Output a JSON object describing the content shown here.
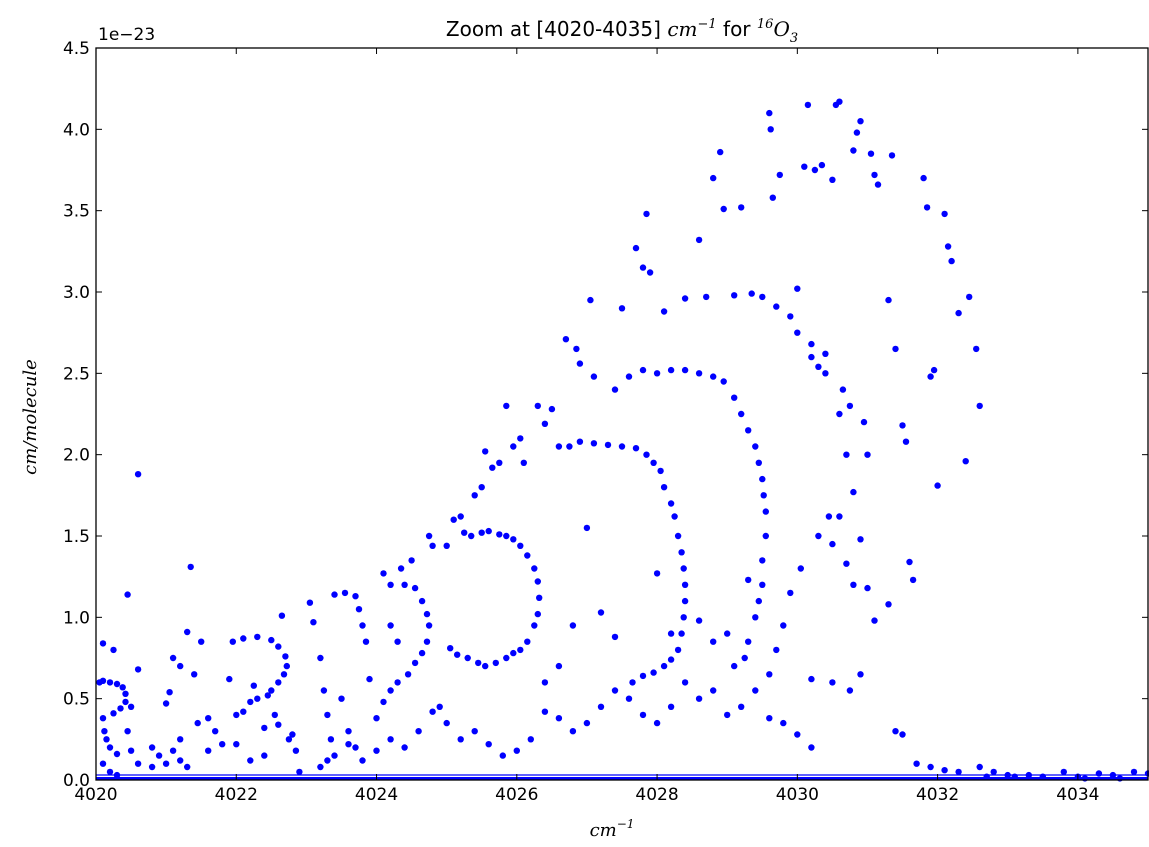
{
  "chart_data": {
    "type": "scatter",
    "title": {
      "prefix": "Zoom at [4020-4035] ",
      "unit_base": "cm",
      "unit_exp": "−1",
      "middle": "  for ",
      "isotope": "16",
      "species_base": "O",
      "species_sub": "3"
    },
    "xlabel": {
      "base": "cm",
      "exp": "−1"
    },
    "ylabel": "cm/molecule",
    "y_scale_label": "1e−23",
    "xlim": [
      4020,
      4035
    ],
    "ylim": [
      0,
      4.5
    ],
    "x_ticks": [
      "4020",
      "4022",
      "4024",
      "4026",
      "4028",
      "4030",
      "4032",
      "4034"
    ],
    "y_ticks": [
      "0.0",
      "0.5",
      "1.0",
      "1.5",
      "2.0",
      "2.5",
      "3.0",
      "3.5",
      "4.0",
      "4.5"
    ],
    "grid": false,
    "color": "#0000ff",
    "points": [
      [
        4020.05,
        0.6
      ],
      [
        4020.1,
        0.61
      ],
      [
        4020.2,
        0.6
      ],
      [
        4020.3,
        0.59
      ],
      [
        4020.38,
        0.57
      ],
      [
        4020.42,
        0.53
      ],
      [
        4020.42,
        0.48
      ],
      [
        4020.35,
        0.44
      ],
      [
        4020.25,
        0.41
      ],
      [
        4020.1,
        0.38
      ],
      [
        4020.12,
        0.3
      ],
      [
        4020.15,
        0.25
      ],
      [
        4020.2,
        0.2
      ],
      [
        4020.3,
        0.16
      ],
      [
        4020.1,
        0.1
      ],
      [
        4020.2,
        0.05
      ],
      [
        4020.3,
        0.03
      ],
      [
        4020.1,
        0.84
      ],
      [
        4020.25,
        0.8
      ],
      [
        4020.45,
        1.14
      ],
      [
        4020.6,
        1.88
      ],
      [
        4020.6,
        0.68
      ],
      [
        4020.5,
        0.45
      ],
      [
        4020.45,
        0.3
      ],
      [
        4020.5,
        0.18
      ],
      [
        4020.6,
        0.1
      ],
      [
        4020.8,
        0.2
      ],
      [
        4020.9,
        0.15
      ],
      [
        4021.0,
        0.47
      ],
      [
        4021.05,
        0.54
      ],
      [
        4021.1,
        0.75
      ],
      [
        4021.2,
        0.7
      ],
      [
        4021.3,
        0.91
      ],
      [
        4021.35,
        1.31
      ],
      [
        4021.5,
        0.85
      ],
      [
        4021.4,
        0.65
      ],
      [
        4021.45,
        0.35
      ],
      [
        4021.2,
        0.25
      ],
      [
        4021.1,
        0.18
      ],
      [
        4021.0,
        0.1
      ],
      [
        4021.3,
        0.08
      ],
      [
        4021.6,
        0.38
      ],
      [
        4021.7,
        0.3
      ],
      [
        4021.8,
        0.22
      ],
      [
        4021.9,
        0.62
      ],
      [
        4021.95,
        0.85
      ],
      [
        4022.1,
        0.87
      ],
      [
        4022.3,
        0.88
      ],
      [
        4022.5,
        0.86
      ],
      [
        4022.6,
        0.82
      ],
      [
        4022.7,
        0.76
      ],
      [
        4022.72,
        0.7
      ],
      [
        4022.68,
        0.65
      ],
      [
        4022.6,
        0.6
      ],
      [
        4022.5,
        0.55
      ],
      [
        4022.45,
        0.52
      ],
      [
        4022.3,
        0.5
      ],
      [
        4022.2,
        0.48
      ],
      [
        4022.1,
        0.42
      ],
      [
        4022.0,
        0.4
      ],
      [
        4022.25,
        0.58
      ],
      [
        4022.2,
        0.12
      ],
      [
        4022.4,
        0.15
      ],
      [
        4022.55,
        0.4
      ],
      [
        4022.6,
        0.34
      ],
      [
        4022.65,
        1.01
      ],
      [
        4022.75,
        0.25
      ],
      [
        4022.85,
        0.18
      ],
      [
        4022.9,
        0.05
      ],
      [
        4023.05,
        1.09
      ],
      [
        4023.1,
        0.97
      ],
      [
        4023.2,
        0.75
      ],
      [
        4023.25,
        0.55
      ],
      [
        4023.3,
        0.4
      ],
      [
        4023.35,
        0.25
      ],
      [
        4023.3,
        0.12
      ],
      [
        4023.4,
        1.14
      ],
      [
        4023.55,
        1.15
      ],
      [
        4023.7,
        1.13
      ],
      [
        4023.75,
        1.05
      ],
      [
        4023.8,
        0.95
      ],
      [
        4023.85,
        0.85
      ],
      [
        4023.5,
        0.5
      ],
      [
        4023.6,
        0.3
      ],
      [
        4023.7,
        0.2
      ],
      [
        4023.9,
        0.62
      ],
      [
        4024.0,
        0.38
      ],
      [
        4024.1,
        1.27
      ],
      [
        4024.2,
        1.2
      ],
      [
        4024.35,
        1.3
      ],
      [
        4024.4,
        1.2
      ],
      [
        4024.5,
        1.35
      ],
      [
        4024.55,
        1.18
      ],
      [
        4024.65,
        1.1
      ],
      [
        4024.72,
        1.02
      ],
      [
        4024.75,
        0.95
      ],
      [
        4024.72,
        0.85
      ],
      [
        4024.65,
        0.78
      ],
      [
        4024.55,
        0.72
      ],
      [
        4024.45,
        0.65
      ],
      [
        4024.3,
        0.6
      ],
      [
        4024.2,
        0.55
      ],
      [
        4024.1,
        0.48
      ],
      [
        4024.3,
        0.85
      ],
      [
        4024.2,
        0.95
      ],
      [
        4024.75,
        1.5
      ],
      [
        4024.8,
        1.44
      ],
      [
        4024.9,
        0.45
      ],
      [
        4025.0,
        1.44
      ],
      [
        4025.1,
        1.6
      ],
      [
        4025.2,
        1.62
      ],
      [
        4025.25,
        1.52
      ],
      [
        4025.35,
        1.5
      ],
      [
        4025.5,
        1.52
      ],
      [
        4025.6,
        1.53
      ],
      [
        4025.75,
        1.51
      ],
      [
        4025.85,
        1.5
      ],
      [
        4025.95,
        1.48
      ],
      [
        4026.05,
        1.44
      ],
      [
        4026.15,
        1.38
      ],
      [
        4026.25,
        1.3
      ],
      [
        4026.3,
        1.22
      ],
      [
        4026.32,
        1.12
      ],
      [
        4026.3,
        1.02
      ],
      [
        4026.25,
        0.95
      ],
      [
        4026.15,
        0.85
      ],
      [
        4026.05,
        0.8
      ],
      [
        4025.95,
        0.78
      ],
      [
        4025.85,
        0.75
      ],
      [
        4025.7,
        0.72
      ],
      [
        4025.55,
        0.7
      ],
      [
        4025.45,
        0.72
      ],
      [
        4025.3,
        0.75
      ],
      [
        4025.15,
        0.77
      ],
      [
        4025.05,
        0.81
      ],
      [
        4025.4,
        1.75
      ],
      [
        4025.5,
        1.8
      ],
      [
        4025.55,
        2.02
      ],
      [
        4025.65,
        1.92
      ],
      [
        4025.75,
        1.95
      ],
      [
        4025.85,
        2.3
      ],
      [
        4025.95,
        2.05
      ],
      [
        4026.05,
        2.1
      ],
      [
        4026.1,
        1.95
      ],
      [
        4026.3,
        2.3
      ],
      [
        4026.4,
        2.19
      ],
      [
        4026.5,
        2.28
      ],
      [
        4026.6,
        2.05
      ],
      [
        4026.75,
        2.05
      ],
      [
        4026.9,
        2.08
      ],
      [
        4027.1,
        2.07
      ],
      [
        4027.3,
        2.06
      ],
      [
        4027.5,
        2.05
      ],
      [
        4027.7,
        2.04
      ],
      [
        4027.85,
        2.0
      ],
      [
        4027.95,
        1.95
      ],
      [
        4028.05,
        1.9
      ],
      [
        4028.1,
        1.8
      ],
      [
        4028.2,
        1.7
      ],
      [
        4028.25,
        1.62
      ],
      [
        4028.3,
        1.5
      ],
      [
        4028.35,
        1.4
      ],
      [
        4028.38,
        1.3
      ],
      [
        4028.4,
        1.2
      ],
      [
        4028.4,
        1.1
      ],
      [
        4028.38,
        1.0
      ],
      [
        4028.35,
        0.9
      ],
      [
        4028.3,
        0.8
      ],
      [
        4028.2,
        0.74
      ],
      [
        4028.1,
        0.7
      ],
      [
        4027.95,
        0.66
      ],
      [
        4027.8,
        0.64
      ],
      [
        4027.65,
        0.6
      ],
      [
        4026.7,
        2.71
      ],
      [
        4026.85,
        2.65
      ],
      [
        4026.9,
        2.56
      ],
      [
        4027.05,
        2.95
      ],
      [
        4027.1,
        2.48
      ],
      [
        4027.4,
        2.4
      ],
      [
        4027.5,
        2.9
      ],
      [
        4027.6,
        2.48
      ],
      [
        4027.8,
        2.52
      ],
      [
        4028.0,
        2.5
      ],
      [
        4028.2,
        2.52
      ],
      [
        4028.4,
        2.52
      ],
      [
        4028.6,
        2.5
      ],
      [
        4028.8,
        2.48
      ],
      [
        4028.95,
        2.45
      ],
      [
        4029.1,
        2.35
      ],
      [
        4029.2,
        2.25
      ],
      [
        4029.3,
        2.15
      ],
      [
        4029.4,
        2.05
      ],
      [
        4029.45,
        1.95
      ],
      [
        4029.5,
        1.85
      ],
      [
        4029.52,
        1.75
      ],
      [
        4029.55,
        1.65
      ],
      [
        4029.55,
        1.5
      ],
      [
        4029.5,
        1.35
      ],
      [
        4029.5,
        1.2
      ],
      [
        4029.45,
        1.1
      ],
      [
        4029.4,
        1.0
      ],
      [
        4029.3,
        0.85
      ],
      [
        4029.25,
        0.75
      ],
      [
        4029.1,
        0.7
      ],
      [
        4027.7,
        3.27
      ],
      [
        4027.8,
        3.15
      ],
      [
        4027.85,
        3.48
      ],
      [
        4027.9,
        3.12
      ],
      [
        4028.1,
        2.88
      ],
      [
        4028.4,
        2.96
      ],
      [
        4028.6,
        3.32
      ],
      [
        4028.7,
        2.97
      ],
      [
        4028.8,
        3.7
      ],
      [
        4028.9,
        3.86
      ],
      [
        4028.95,
        3.51
      ],
      [
        4029.1,
        2.98
      ],
      [
        4029.2,
        3.52
      ],
      [
        4029.35,
        2.99
      ],
      [
        4029.5,
        2.97
      ],
      [
        4029.6,
        4.1
      ],
      [
        4029.62,
        4.0
      ],
      [
        4029.65,
        3.58
      ],
      [
        4029.7,
        2.91
      ],
      [
        4029.75,
        3.72
      ],
      [
        4029.9,
        2.85
      ],
      [
        4030.0,
        2.75
      ],
      [
        4030.1,
        3.77
      ],
      [
        4030.15,
        4.15
      ],
      [
        4030.2,
        2.6
      ],
      [
        4030.25,
        3.75
      ],
      [
        4030.35,
        3.78
      ],
      [
        4030.4,
        2.5
      ],
      [
        4030.5,
        3.69
      ],
      [
        4030.55,
        4.15
      ],
      [
        4030.6,
        4.17
      ],
      [
        4030.65,
        2.4
      ],
      [
        4030.75,
        2.3
      ],
      [
        4030.8,
        3.87
      ],
      [
        4030.85,
        3.98
      ],
      [
        4030.9,
        4.05
      ],
      [
        4030.95,
        2.2
      ],
      [
        4031.0,
        2.0
      ],
      [
        4031.05,
        3.85
      ],
      [
        4031.1,
        3.72
      ],
      [
        4031.15,
        3.66
      ],
      [
        4031.3,
        2.95
      ],
      [
        4031.35,
        3.84
      ],
      [
        4031.4,
        2.65
      ],
      [
        4031.5,
        2.18
      ],
      [
        4031.55,
        2.08
      ],
      [
        4031.6,
        1.34
      ],
      [
        4031.65,
        1.23
      ],
      [
        4031.8,
        3.7
      ],
      [
        4031.85,
        3.52
      ],
      [
        4031.9,
        2.48
      ],
      [
        4031.95,
        2.52
      ],
      [
        4032.0,
        1.81
      ],
      [
        4032.1,
        3.48
      ],
      [
        4032.15,
        3.28
      ],
      [
        4032.2,
        3.19
      ],
      [
        4032.3,
        2.87
      ],
      [
        4032.4,
        1.96
      ],
      [
        4032.45,
        2.97
      ],
      [
        4032.55,
        2.65
      ],
      [
        4032.6,
        2.3
      ],
      [
        4030.0,
        3.02
      ],
      [
        4030.2,
        2.68
      ],
      [
        4030.3,
        2.54
      ],
      [
        4030.4,
        2.62
      ],
      [
        4030.6,
        2.25
      ],
      [
        4030.7,
        2.0
      ],
      [
        4030.8,
        1.77
      ],
      [
        4030.9,
        1.48
      ],
      [
        4031.0,
        1.18
      ],
      [
        4031.1,
        0.98
      ],
      [
        4031.3,
        1.08
      ],
      [
        4031.4,
        0.3
      ],
      [
        4030.3,
        1.5
      ],
      [
        4030.45,
        1.62
      ],
      [
        4030.5,
        1.45
      ],
      [
        4030.6,
        1.62
      ],
      [
        4030.7,
        1.33
      ],
      [
        4030.8,
        1.2
      ],
      [
        4030.9,
        0.65
      ],
      [
        4030.75,
        0.55
      ],
      [
        4030.5,
        0.6
      ],
      [
        4030.2,
        0.62
      ],
      [
        4030.05,
        1.3
      ],
      [
        4029.9,
        1.15
      ],
      [
        4029.8,
        0.95
      ],
      [
        4029.7,
        0.8
      ],
      [
        4029.6,
        0.65
      ],
      [
        4029.4,
        0.55
      ],
      [
        4029.2,
        0.45
      ],
      [
        4029.0,
        0.4
      ],
      [
        4028.8,
        0.55
      ],
      [
        4028.6,
        0.5
      ],
      [
        4028.4,
        0.6
      ],
      [
        4028.2,
        0.45
      ],
      [
        4028.0,
        0.35
      ],
      [
        4027.8,
        0.4
      ],
      [
        4027.6,
        0.5
      ],
      [
        4027.4,
        0.55
      ],
      [
        4027.2,
        0.45
      ],
      [
        4027.0,
        0.35
      ],
      [
        4026.8,
        0.3
      ],
      [
        4026.6,
        0.38
      ],
      [
        4026.4,
        0.42
      ],
      [
        4026.2,
        0.25
      ],
      [
        4026.0,
        0.18
      ],
      [
        4025.8,
        0.15
      ],
      [
        4025.6,
        0.22
      ],
      [
        4025.4,
        0.3
      ],
      [
        4025.2,
        0.25
      ],
      [
        4025.0,
        0.35
      ],
      [
        4024.8,
        0.42
      ],
      [
        4024.6,
        0.3
      ],
      [
        4024.4,
        0.2
      ],
      [
        4024.2,
        0.25
      ],
      [
        4024.0,
        0.18
      ],
      [
        4023.8,
        0.12
      ],
      [
        4023.6,
        0.22
      ],
      [
        4023.4,
        0.15
      ],
      [
        4023.2,
        0.08
      ],
      [
        4022.8,
        0.28
      ],
      [
        4022.4,
        0.32
      ],
      [
        4022.0,
        0.22
      ],
      [
        4021.6,
        0.18
      ],
      [
        4021.2,
        0.12
      ],
      [
        4020.8,
        0.08
      ],
      [
        4027.0,
        1.55
      ],
      [
        4027.2,
        1.03
      ],
      [
        4027.4,
        0.88
      ],
      [
        4026.8,
        0.95
      ],
      [
        4026.6,
        0.7
      ],
      [
        4026.4,
        0.6
      ],
      [
        4028.0,
        1.27
      ],
      [
        4028.2,
        0.9
      ],
      [
        4028.6,
        0.98
      ],
      [
        4028.8,
        0.85
      ],
      [
        4029.0,
        0.9
      ],
      [
        4029.3,
        1.23
      ],
      [
        4029.6,
        0.38
      ],
      [
        4029.8,
        0.35
      ],
      [
        4030.0,
        0.28
      ],
      [
        4030.2,
        0.2
      ],
      [
        4031.5,
        0.28
      ],
      [
        4031.7,
        0.1
      ],
      [
        4031.9,
        0.08
      ],
      [
        4032.1,
        0.06
      ],
      [
        4032.3,
        0.05
      ],
      [
        4032.6,
        0.08
      ],
      [
        4032.8,
        0.05
      ],
      [
        4033.0,
        0.03
      ],
      [
        4033.3,
        0.03
      ],
      [
        4033.5,
        0.02
      ],
      [
        4033.8,
        0.05
      ],
      [
        4034.0,
        0.02
      ],
      [
        4034.3,
        0.04
      ],
      [
        4034.5,
        0.03
      ],
      [
        4034.8,
        0.05
      ],
      [
        4035.0,
        0.04
      ],
      [
        4032.7,
        0.02
      ],
      [
        4033.1,
        0.02
      ],
      [
        4034.1,
        0.01
      ],
      [
        4034.6,
        0.01
      ]
    ]
  }
}
